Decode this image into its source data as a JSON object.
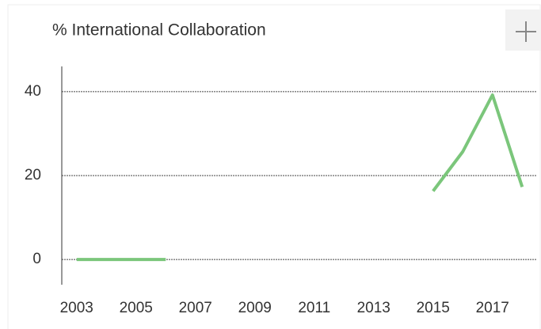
{
  "chart_data": {
    "type": "line",
    "title": "% International Collaboration",
    "x": [
      2003,
      2004,
      2005,
      2006,
      2007,
      2008,
      2009,
      2010,
      2011,
      2012,
      2013,
      2014,
      2015,
      2016,
      2017,
      2018
    ],
    "series": [
      {
        "name": "% International Collaboration",
        "color": "#7bc67b",
        "values": [
          0,
          0,
          0,
          0,
          null,
          null,
          null,
          null,
          null,
          null,
          null,
          null,
          16.3,
          25.7,
          39.2,
          17.3
        ]
      }
    ],
    "xlim": [
      2002.5,
      2018.5
    ],
    "xticks": [
      2003,
      2005,
      2007,
      2009,
      2011,
      2013,
      2015,
      2017
    ],
    "ylim": [
      -6,
      46
    ],
    "yticks": [
      0,
      20,
      40
    ],
    "grid": true
  }
}
